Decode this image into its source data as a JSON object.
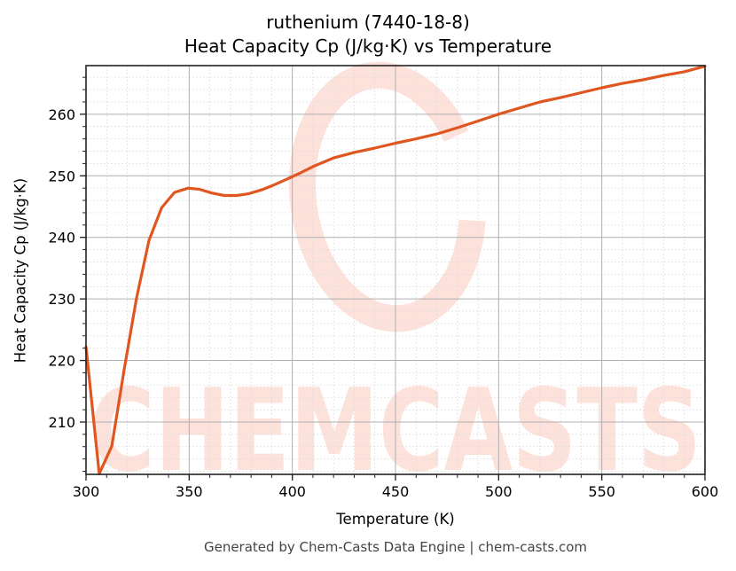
{
  "chart_data": {
    "type": "line",
    "title": "ruthenium (7440-18-8)",
    "subtitle": "Heat Capacity Cp (J/kg·K) vs Temperature",
    "xlabel": "Temperature (K)",
    "ylabel": "Heat Capacity Cp (J/kg·K)",
    "xlim": [
      300,
      600
    ],
    "ylim": [
      201.5,
      267.9
    ],
    "xticks": [
      300,
      350,
      400,
      450,
      500,
      550,
      600
    ],
    "yticks": [
      210,
      220,
      230,
      240,
      250,
      260
    ],
    "x_minor_step": 10,
    "y_minor_step": 2,
    "grid": true,
    "legend": null,
    "series": [
      {
        "name": "Heat Capacity Cp",
        "color": "#DF5620",
        "x": [
          300,
          306.4,
          312.5,
          318.5,
          324.4,
          330.5,
          336.6,
          342.9,
          349.5,
          355,
          361,
          367,
          373,
          379,
          385,
          391,
          397,
          403.5,
          410,
          420,
          430,
          440,
          450,
          460,
          470,
          480,
          490,
          500,
          510,
          520,
          530,
          540,
          550,
          560,
          570,
          580,
          590,
          600
        ],
        "values": [
          222.2,
          201.6,
          206.1,
          218.5,
          230.0,
          239.5,
          244.8,
          247.3,
          248.0,
          247.8,
          247.2,
          246.8,
          246.8,
          247.1,
          247.7,
          248.5,
          249.4,
          250.4,
          251.5,
          252.9,
          253.8,
          254.5,
          255.3,
          256.0,
          256.8,
          257.8,
          258.9,
          260.0,
          261.0,
          262.0,
          262.7,
          263.5,
          264.3,
          265.0,
          265.6,
          266.3,
          266.9,
          267.8
        ]
      }
    ]
  },
  "page": {
    "watermark_text": "CHEMCASTS",
    "footer": "Generated by Chem-Casts Data Engine | chem-casts.com",
    "watermark_color": "#FDE1DB",
    "axis_color": "#222222",
    "grid_major_color": "#b0b0b0",
    "grid_minor_color": "#dddddd"
  }
}
